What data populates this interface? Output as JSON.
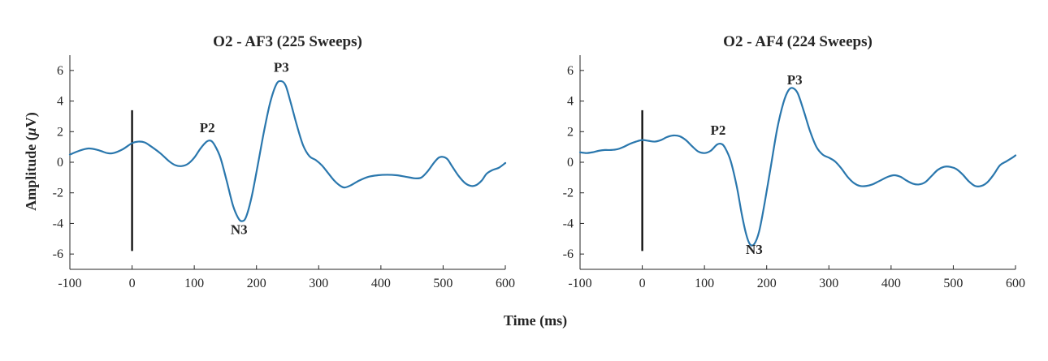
{
  "figure": {
    "xlabel": "Time (ms)",
    "ylabel_main": "Amplitude (",
    "ylabel_mu": "μ",
    "ylabel_unit": "V)"
  },
  "chart_data": [
    {
      "type": "line",
      "title": "O2 - AF3 (225 Sweeps)",
      "xlim": [
        -100,
        600
      ],
      "ylim": [
        -7,
        7
      ],
      "xticks": [
        -100,
        0,
        100,
        200,
        300,
        400,
        500,
        600
      ],
      "yticks": [
        -6,
        -4,
        -2,
        0,
        2,
        4,
        6
      ],
      "color": "#2a77ad",
      "marker_line": {
        "x": 0,
        "y_range": [
          -5.8,
          3.4
        ]
      },
      "series": [
        {
          "name": "O2 - AF3",
          "points": [
            [
              -100,
              0.5
            ],
            [
              -85,
              0.75
            ],
            [
              -70,
              0.9
            ],
            [
              -55,
              0.8
            ],
            [
              -40,
              0.6
            ],
            [
              -30,
              0.6
            ],
            [
              -15,
              0.85
            ],
            [
              0,
              1.25
            ],
            [
              10,
              1.35
            ],
            [
              20,
              1.3
            ],
            [
              30,
              1.05
            ],
            [
              45,
              0.6
            ],
            [
              60,
              0.05
            ],
            [
              70,
              -0.2
            ],
            [
              80,
              -0.25
            ],
            [
              90,
              -0.1
            ],
            [
              100,
              0.3
            ],
            [
              110,
              0.9
            ],
            [
              120,
              1.35
            ],
            [
              127,
              1.4
            ],
            [
              133,
              1.1
            ],
            [
              142,
              0.3
            ],
            [
              152,
              -1.2
            ],
            [
              162,
              -2.8
            ],
            [
              170,
              -3.6
            ],
            [
              176,
              -3.85
            ],
            [
              183,
              -3.6
            ],
            [
              192,
              -2.3
            ],
            [
              202,
              -0.2
            ],
            [
              212,
              2.0
            ],
            [
              222,
              3.9
            ],
            [
              232,
              5.1
            ],
            [
              240,
              5.3
            ],
            [
              247,
              5.0
            ],
            [
              255,
              3.9
            ],
            [
              265,
              2.4
            ],
            [
              275,
              1.1
            ],
            [
              285,
              0.4
            ],
            [
              295,
              0.15
            ],
            [
              305,
              -0.2
            ],
            [
              315,
              -0.7
            ],
            [
              325,
              -1.2
            ],
            [
              335,
              -1.55
            ],
            [
              342,
              -1.65
            ],
            [
              352,
              -1.5
            ],
            [
              365,
              -1.2
            ],
            [
              380,
              -0.95
            ],
            [
              395,
              -0.85
            ],
            [
              410,
              -0.82
            ],
            [
              425,
              -0.85
            ],
            [
              440,
              -0.95
            ],
            [
              455,
              -1.05
            ],
            [
              465,
              -1.0
            ],
            [
              475,
              -0.6
            ],
            [
              485,
              -0.05
            ],
            [
              493,
              0.3
            ],
            [
              500,
              0.35
            ],
            [
              507,
              0.2
            ],
            [
              515,
              -0.3
            ],
            [
              525,
              -0.9
            ],
            [
              535,
              -1.35
            ],
            [
              545,
              -1.55
            ],
            [
              553,
              -1.5
            ],
            [
              562,
              -1.2
            ],
            [
              570,
              -0.75
            ],
            [
              580,
              -0.5
            ],
            [
              590,
              -0.35
            ],
            [
              600,
              -0.05
            ]
          ]
        }
      ],
      "annotations": [
        {
          "text": "P2",
          "x": 121,
          "y": 1.95
        },
        {
          "text": "N3",
          "x": 172,
          "y": -4.7
        },
        {
          "text": "P3",
          "x": 240,
          "y": 5.9
        }
      ]
    },
    {
      "type": "line",
      "title": "O2 - AF4 (224 Sweeps)",
      "xlim": [
        -100,
        600
      ],
      "ylim": [
        -7,
        7
      ],
      "xticks": [
        -100,
        0,
        100,
        200,
        300,
        400,
        500,
        600
      ],
      "yticks": [
        -6,
        -4,
        -2,
        0,
        2,
        4,
        6
      ],
      "color": "#2a77ad",
      "marker_line": {
        "x": 0,
        "y_range": [
          -5.8,
          3.4
        ]
      },
      "series": [
        {
          "name": "O2 - AF4",
          "points": [
            [
              -100,
              0.65
            ],
            [
              -90,
              0.6
            ],
            [
              -80,
              0.65
            ],
            [
              -70,
              0.75
            ],
            [
              -60,
              0.8
            ],
            [
              -50,
              0.8
            ],
            [
              -40,
              0.85
            ],
            [
              -30,
              1.0
            ],
            [
              -20,
              1.2
            ],
            [
              -10,
              1.35
            ],
            [
              0,
              1.45
            ],
            [
              10,
              1.4
            ],
            [
              20,
              1.35
            ],
            [
              30,
              1.45
            ],
            [
              40,
              1.65
            ],
            [
              50,
              1.75
            ],
            [
              60,
              1.7
            ],
            [
              70,
              1.45
            ],
            [
              80,
              1.05
            ],
            [
              90,
              0.7
            ],
            [
              100,
              0.6
            ],
            [
              110,
              0.75
            ],
            [
              120,
              1.15
            ],
            [
              127,
              1.2
            ],
            [
              133,
              0.95
            ],
            [
              142,
              0.1
            ],
            [
              152,
              -1.6
            ],
            [
              160,
              -3.4
            ],
            [
              167,
              -4.7
            ],
            [
              173,
              -5.35
            ],
            [
              180,
              -5.35
            ],
            [
              188,
              -4.5
            ],
            [
              197,
              -2.6
            ],
            [
              207,
              -0.2
            ],
            [
              217,
              2.2
            ],
            [
              227,
              3.9
            ],
            [
              235,
              4.7
            ],
            [
              242,
              4.85
            ],
            [
              250,
              4.5
            ],
            [
              260,
              3.3
            ],
            [
              270,
              2.0
            ],
            [
              280,
              1.0
            ],
            [
              290,
              0.5
            ],
            [
              300,
              0.3
            ],
            [
              310,
              0.05
            ],
            [
              320,
              -0.4
            ],
            [
              330,
              -0.95
            ],
            [
              340,
              -1.35
            ],
            [
              350,
              -1.55
            ],
            [
              360,
              -1.55
            ],
            [
              370,
              -1.45
            ],
            [
              380,
              -1.25
            ],
            [
              395,
              -0.95
            ],
            [
              405,
              -0.85
            ],
            [
              415,
              -0.95
            ],
            [
              425,
              -1.2
            ],
            [
              435,
              -1.4
            ],
            [
              445,
              -1.45
            ],
            [
              455,
              -1.3
            ],
            [
              465,
              -0.9
            ],
            [
              475,
              -0.5
            ],
            [
              485,
              -0.3
            ],
            [
              495,
              -0.3
            ],
            [
              505,
              -0.45
            ],
            [
              515,
              -0.8
            ],
            [
              525,
              -1.25
            ],
            [
              535,
              -1.55
            ],
            [
              545,
              -1.55
            ],
            [
              555,
              -1.3
            ],
            [
              565,
              -0.8
            ],
            [
              575,
              -0.2
            ],
            [
              585,
              0.05
            ],
            [
              595,
              0.3
            ],
            [
              600,
              0.45
            ]
          ]
        }
      ],
      "annotations": [
        {
          "text": "P2",
          "x": 122,
          "y": 1.8
        },
        {
          "text": "N3",
          "x": 180,
          "y": -6.0
        },
        {
          "text": "P3",
          "x": 245,
          "y": 5.1
        }
      ]
    }
  ]
}
